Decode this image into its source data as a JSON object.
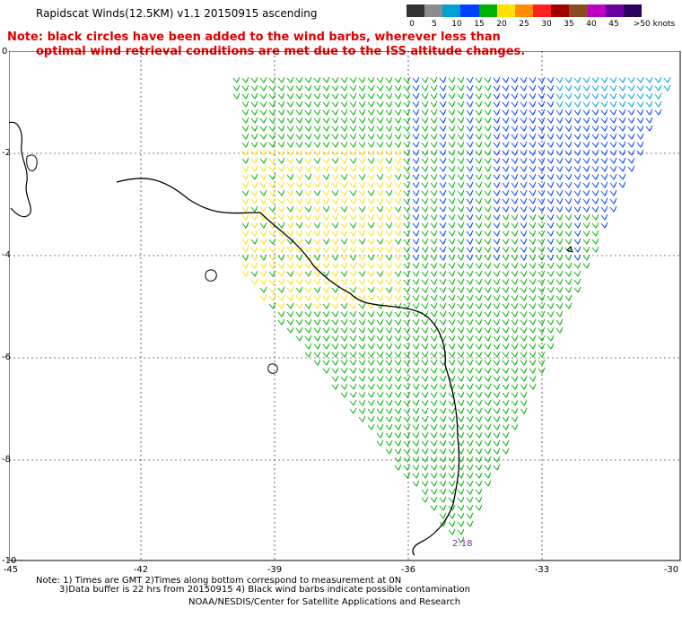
{
  "header": {
    "title": "Rapidscat Winds(12.5KM) v1.1 20150915 ascending",
    "note_line1": "Note: black circles have been added to the wind barbs, wherever less than",
    "note_line2": "optimal wind retrieval conditions are met due to the ISS altitude changes."
  },
  "colorbar": {
    "colors": [
      "#333333",
      "#8c8c8c",
      "#00a0d0",
      "#0040ff",
      "#00b000",
      "#ffe000",
      "#ff8c00",
      "#ff2020",
      "#a00000",
      "#8c4a20",
      "#c000c0",
      "#6a00a0",
      "#2a0060"
    ],
    "labels": [
      "0",
      "5",
      "10",
      "15",
      "20",
      "25",
      "30",
      "35",
      "40",
      "45",
      ">50 knots"
    ]
  },
  "axes": {
    "x_ticks": [
      "-45",
      "-42",
      "-39",
      "-36",
      "-33",
      "-30"
    ],
    "y_ticks": [
      "0",
      "-2",
      "-4",
      "-6",
      "-8",
      "-10"
    ]
  },
  "pass_time": "2:18",
  "footer": {
    "line1": "Note: 1) Times are GMT 2)Times along bottom correspond to measurement at 0N",
    "line2": "3)Data buffer is 22 hrs from 20150915 4) Black wind barbs indicate possible contamination",
    "line3": "NOAA/NESDIS/Center for Satellite Applications and Research"
  }
}
